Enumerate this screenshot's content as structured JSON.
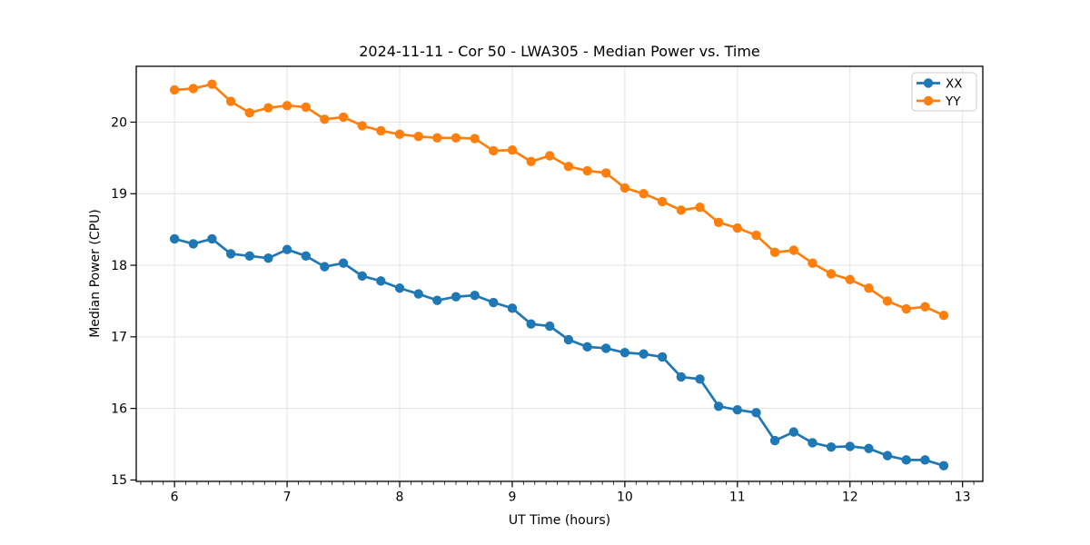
{
  "title": "2024-11-11 - Cor 50 - LWA305 - Median Power vs. Time",
  "chart_data": {
    "type": "line",
    "title": "2024-11-11 - Cor 50 - LWA305 - Median Power vs. Time",
    "xlabel": "UT Time (hours)",
    "ylabel": "Median Power (CPU)",
    "xlim": [
      5.66,
      13.18
    ],
    "ylim": [
      14.98,
      20.78
    ],
    "x_ticks": [
      6,
      7,
      8,
      9,
      10,
      11,
      12,
      13
    ],
    "y_ticks": [
      15,
      16,
      17,
      18,
      19,
      20
    ],
    "x_minor_step": 0.1,
    "grid": true,
    "grid_color": "#e3e3e3",
    "legend_position": "upper right",
    "x": [
      6.0,
      6.167,
      6.333,
      6.5,
      6.667,
      6.833,
      7.0,
      7.167,
      7.333,
      7.5,
      7.667,
      7.833,
      8.0,
      8.167,
      8.333,
      8.5,
      8.667,
      8.833,
      9.0,
      9.167,
      9.333,
      9.5,
      9.667,
      9.833,
      10.0,
      10.167,
      10.333,
      10.5,
      10.667,
      10.833,
      11.0,
      11.167,
      11.333,
      11.5,
      11.667,
      11.833,
      12.0,
      12.167,
      12.333,
      12.5,
      12.667,
      12.833
    ],
    "series": [
      {
        "name": "XX",
        "color": "#1f77b4",
        "values": [
          18.37,
          18.3,
          18.37,
          18.16,
          18.13,
          18.1,
          18.22,
          18.13,
          17.98,
          18.03,
          17.85,
          17.78,
          17.68,
          17.6,
          17.51,
          17.56,
          17.58,
          17.48,
          17.4,
          17.18,
          17.15,
          16.96,
          16.86,
          16.84,
          16.78,
          16.76,
          16.72,
          16.44,
          16.41,
          16.03,
          15.98,
          15.94,
          15.55,
          15.67,
          15.52,
          15.46,
          15.47,
          15.44,
          15.34,
          15.28,
          15.28,
          15.2
        ]
      },
      {
        "name": "YY",
        "color": "#ff7f0e",
        "values": [
          20.45,
          20.47,
          20.53,
          20.29,
          20.13,
          20.2,
          20.23,
          20.21,
          20.04,
          20.07,
          19.95,
          19.88,
          19.83,
          19.8,
          19.78,
          19.78,
          19.77,
          19.6,
          19.61,
          19.45,
          19.53,
          19.38,
          19.32,
          19.29,
          19.08,
          19.0,
          18.89,
          18.77,
          18.81,
          18.6,
          18.52,
          18.42,
          18.18,
          18.21,
          18.03,
          17.88,
          17.8,
          17.68,
          17.5,
          17.39,
          17.42,
          17.3
        ]
      }
    ]
  }
}
